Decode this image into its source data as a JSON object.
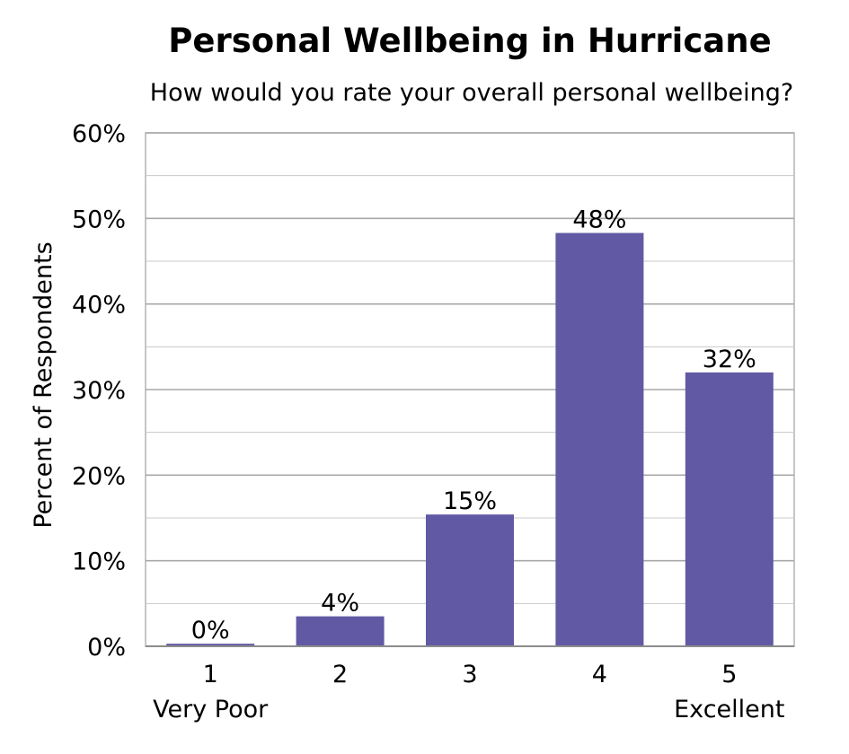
{
  "chart_data": {
    "type": "bar",
    "title": "Personal Wellbeing in Hurricane",
    "subtitle": "How would you rate your overall personal wellbeing?",
    "ylabel": "Percent of Respondents",
    "xlabel": "",
    "categories": [
      "1",
      "2",
      "3",
      "4",
      "5"
    ],
    "category_sublabels": [
      "Very Poor",
      "",
      "",
      "",
      "Excellent"
    ],
    "values": [
      0.3,
      3.5,
      15.4,
      48.3,
      32.0
    ],
    "value_labels": [
      "0%",
      "4%",
      "15%",
      "48%",
      "32%"
    ],
    "ylim": [
      0,
      60
    ],
    "y_ticks": [
      0,
      10,
      20,
      30,
      40,
      50,
      60
    ],
    "y_tick_labels": [
      "0%",
      "10%",
      "20%",
      "30%",
      "40%",
      "50%",
      "60%"
    ],
    "grid": true,
    "minor_grid": true,
    "legend": "none",
    "bar_color": "#6159a4",
    "grid_color": "#b4b4b4"
  }
}
